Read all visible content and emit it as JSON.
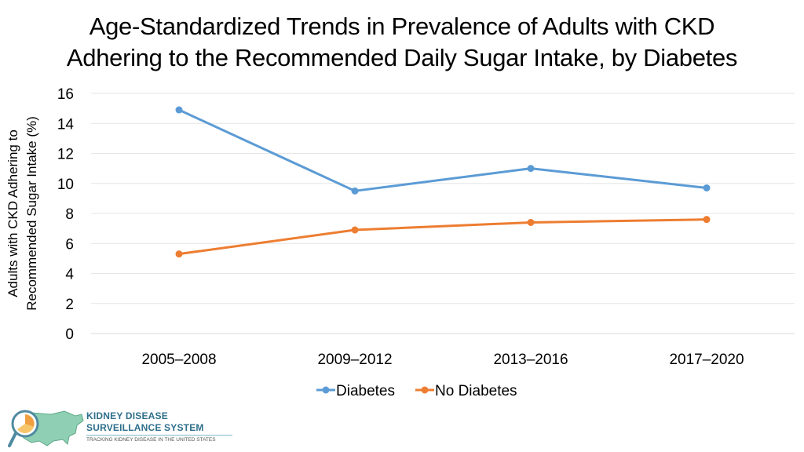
{
  "title": {
    "line1": "Age-Standardized Trends in Prevalence of Adults with CKD",
    "line2": "Adhering to the Recommended Daily Sugar Intake, by Diabetes"
  },
  "logo": {
    "line1": "KIDNEY DISEASE",
    "line2": "SURVEILLANCE SYSTEM",
    "tagline": "TRACKING KIDNEY DISEASE IN THE UNITED STATES"
  },
  "chart_data": {
    "type": "line",
    "title": "Age-Standardized Trends in Prevalence of Adults with CKD Adhering to the Recommended Daily Sugar Intake, by Diabetes",
    "ylabel_lines": [
      "Adults with CKD Adhering to",
      "Recommended Sugar Intake (%)"
    ],
    "xlabel": "",
    "categories": [
      "2005–2008",
      "2009–2012",
      "2013–2016",
      "2017–2020"
    ],
    "ylim": [
      0,
      16
    ],
    "yticks": [
      0,
      2,
      4,
      6,
      8,
      10,
      12,
      14,
      16
    ],
    "grid": true,
    "legend_position": "bottom",
    "series": [
      {
        "name": "Diabetes",
        "color": "#5b9bd5",
        "values": [
          14.9,
          9.5,
          11.0,
          9.7
        ]
      },
      {
        "name": "No Diabetes",
        "color": "#ed7d31",
        "values": [
          5.3,
          6.9,
          7.4,
          7.6
        ]
      }
    ]
  }
}
